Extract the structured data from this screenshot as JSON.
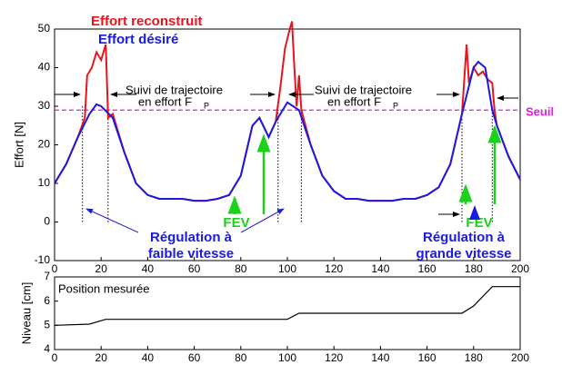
{
  "chart_data": [
    {
      "type": "line",
      "ylabel": "Effort [N]",
      "xlim": [
        0,
        200
      ],
      "xticks": [
        0,
        20,
        40,
        60,
        80,
        100,
        120,
        140,
        160,
        180,
        200
      ],
      "ylim": [
        -10,
        50
      ],
      "yticks": [
        -10,
        0,
        10,
        20,
        30,
        40,
        50
      ],
      "series": [
        {
          "name": "Effort reconstruit",
          "color": "#e8141c",
          "x": [
            0,
            5,
            10,
            13,
            14,
            16,
            18,
            20,
            22,
            23,
            25,
            30,
            35,
            40,
            45,
            50,
            55,
            60,
            65,
            70,
            75,
            80,
            85,
            88,
            92,
            95,
            97,
            99,
            101,
            102,
            103,
            104,
            105,
            106,
            110,
            115,
            120,
            125,
            130,
            135,
            140,
            145,
            150,
            155,
            160,
            165,
            170,
            175,
            177,
            178,
            180,
            182,
            184,
            186,
            188,
            189,
            190,
            195,
            200
          ],
          "values": [
            10,
            15,
            22,
            27,
            38,
            40,
            44,
            42,
            46,
            27,
            28,
            18,
            10,
            7,
            6,
            6,
            6,
            5.5,
            5.5,
            6,
            7,
            12,
            25,
            27,
            22,
            26,
            35,
            45,
            50,
            52,
            40,
            30,
            38,
            29,
            20,
            12,
            8,
            6,
            6,
            5.5,
            5.5,
            5.5,
            6,
            6,
            7,
            9,
            15,
            28,
            46,
            36,
            40,
            38,
            39,
            37,
            36,
            29,
            25,
            17,
            11
          ]
        },
        {
          "name": "Effort désiré",
          "color": "#1a1ae0",
          "x": [
            0,
            5,
            10,
            15,
            18,
            20,
            25,
            30,
            35,
            40,
            45,
            50,
            55,
            60,
            65,
            70,
            75,
            80,
            85,
            88,
            92,
            95,
            100,
            105,
            110,
            115,
            120,
            125,
            130,
            135,
            140,
            145,
            150,
            155,
            160,
            165,
            170,
            175,
            180,
            182,
            185,
            188,
            190,
            195,
            200
          ],
          "values": [
            10,
            15,
            22,
            28,
            30.5,
            30,
            27,
            18,
            10,
            7,
            6,
            6,
            6,
            5.5,
            5.5,
            6,
            7,
            12,
            25,
            27,
            22,
            26,
            31,
            29,
            20,
            12,
            8,
            6,
            6,
            5.5,
            5.5,
            5.5,
            6,
            6,
            7,
            9,
            15,
            28,
            40,
            41.5,
            40,
            29,
            25,
            17,
            11
          ]
        }
      ],
      "threshold": {
        "value": 29,
        "label": "Seuil",
        "color": "#e020e0"
      },
      "marker_x": [
        12,
        23,
        96,
        106,
        175,
        188
      ],
      "annotations": {
        "tracking": [
          "Suivi de trajectoire",
          "en effort F",
          "P"
        ],
        "low_speed": [
          "Régulation à",
          "faible vitesse"
        ],
        "high_speed": [
          "Régulation à",
          "grande vitesse"
        ],
        "fev": "FEV"
      }
    },
    {
      "type": "line",
      "ylabel": "Niveau [cm]",
      "title": "Position mesurée",
      "xlim": [
        0,
        200
      ],
      "xticks": [
        0,
        20,
        40,
        60,
        80,
        100,
        120,
        140,
        160,
        180,
        200
      ],
      "ylim": [
        4,
        7
      ],
      "yticks": [
        4,
        5,
        6,
        7
      ],
      "series": [
        {
          "name": null,
          "color": "#000000",
          "x": [
            0,
            15,
            22,
            60,
            100,
            105,
            140,
            175,
            180,
            188,
            200
          ],
          "values": [
            5.0,
            5.05,
            5.25,
            5.25,
            5.25,
            5.5,
            5.5,
            5.5,
            5.8,
            6.6,
            6.6
          ]
        }
      ]
    }
  ]
}
